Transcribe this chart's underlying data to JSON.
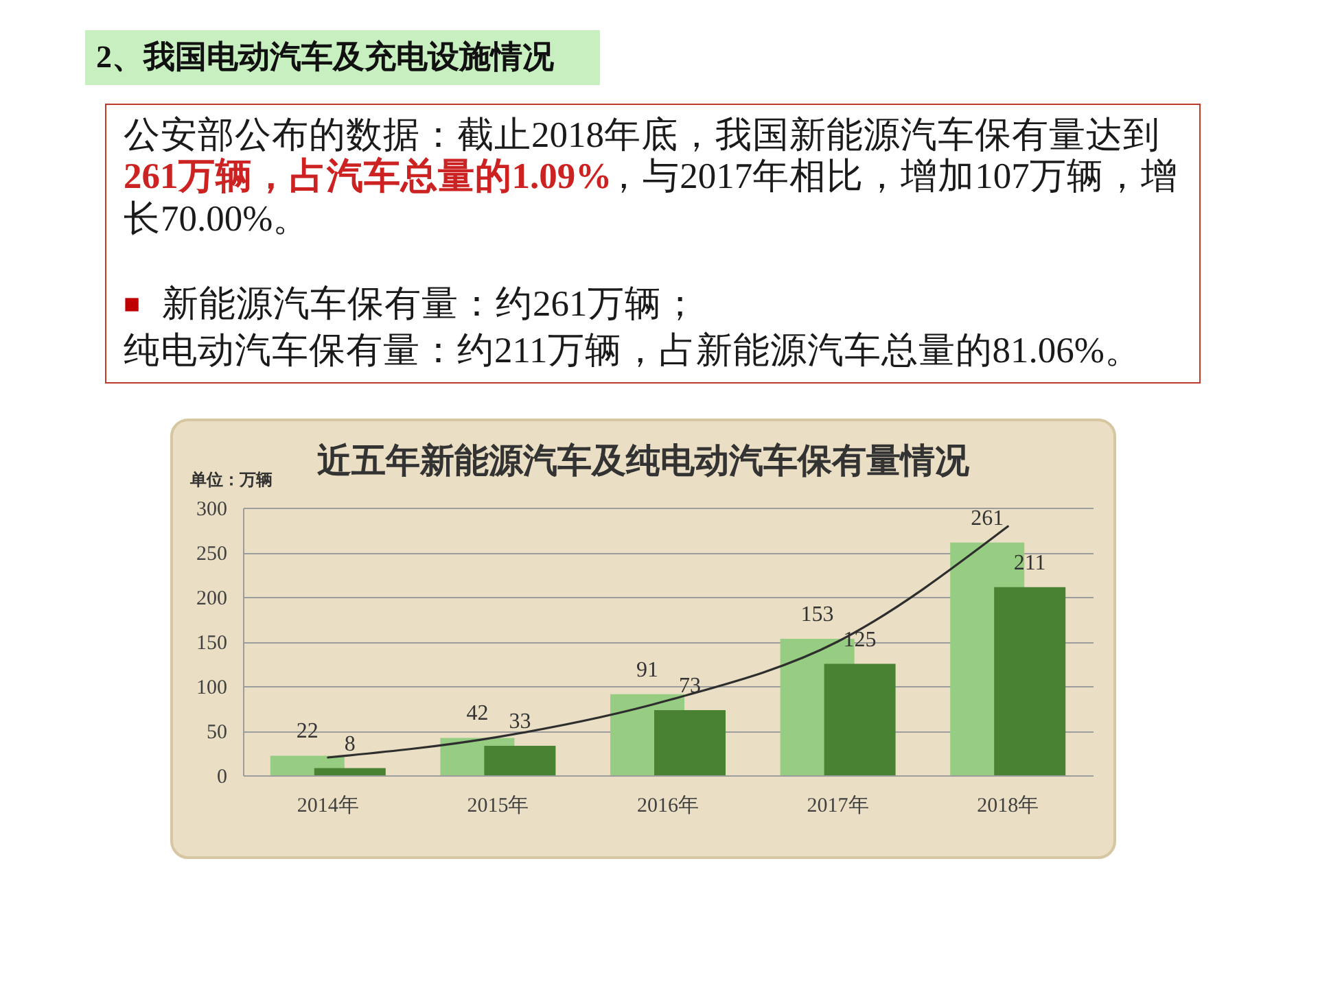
{
  "chart_data": {
    "type": "bar",
    "title": "近五年新能源汽车及纯电动汽车保有量情况",
    "ylabel": "单位：万辆",
    "categories": [
      "2014年",
      "2015年",
      "2016年",
      "2017年",
      "2018年"
    ],
    "series": [
      {
        "color": "#96cd82",
        "values": [
          22,
          42,
          91,
          153,
          261
        ],
        "value_labels": [
          "22",
          "42",
          "91",
          "153",
          "261"
        ]
      },
      {
        "color": "#4a8234",
        "values": [
          8,
          33,
          73,
          125,
          211
        ],
        "value_labels": [
          "8",
          "33",
          "73",
          "125",
          "211"
        ]
      },
      {
        "type": "line",
        "color": "#2e2e2e",
        "values": [
          20,
          43,
          84,
          150,
          279
        ]
      }
    ],
    "ylim": [
      0,
      300
    ],
    "yticks": [
      0,
      50,
      100,
      150,
      200,
      250,
      300
    ],
    "grid": "y",
    "annotations": [
      "2、我国电动汽车及充电设施情况",
      "公安部公布的数据：截止2018年底，我国新能源汽车保有量达到",
      "261万辆，占汽车总量的1.09%",
      "，与2017年相比，增加107万辆，增",
      "长70.00%。",
      "■ 新能源汽车保有量：约261万辆；",
      "纯电动汽车保有量：约211万辆，占新能源汽车总量的81.06%。"
    ]
  }
}
